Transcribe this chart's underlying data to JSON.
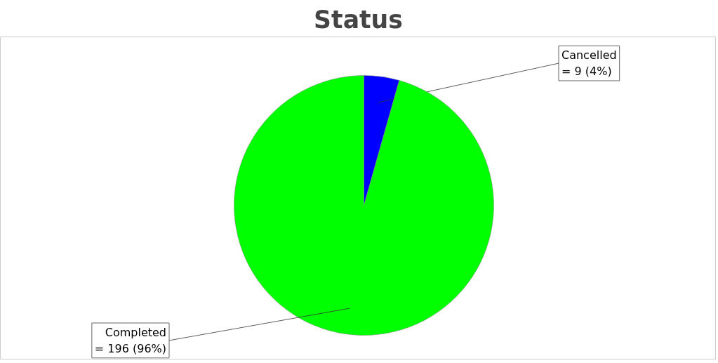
{
  "chart_data": {
    "type": "pie",
    "title": "Status",
    "categories": [
      "Cancelled",
      "Completed"
    ],
    "values": [
      9,
      196
    ],
    "colors": [
      "#0000ff",
      "#00ff00"
    ],
    "value_labels": [
      "= 9 (4%)",
      "= 196 (96%)"
    ]
  }
}
